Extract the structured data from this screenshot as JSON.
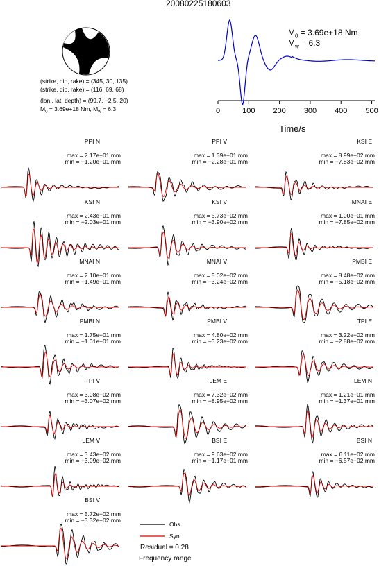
{
  "header": {
    "title": "20080225180603"
  },
  "mechanism": {
    "plane1": "(strike, dip, rake) = (345, 30, 135)",
    "plane2": "(strike, dip, rake) = (116, 69, 68)",
    "location": "(lon., lat, depth) = (99.7, −2.5, 20)",
    "moment_main": "M",
    "moment_sub": "0",
    "moment_value": " = 3.69e+18 Nm, M",
    "mw_sub": "w",
    "mw_value": " = 6.3"
  },
  "stf": {
    "m0_label": "M",
    "m0_sub": "0",
    "m0_value": " = 3.69e+18 Nm",
    "mw_label": "M",
    "mw_sub": "w",
    "mw_value": " = 6.3",
    "xlabel": "Time/s",
    "ticks": [
      "0",
      "100",
      "200",
      "300",
      "400",
      "500"
    ],
    "line_color": "#0000cc"
  },
  "legend": {
    "obs": "Obs.",
    "syn": "Syn.",
    "obs_color": "#000000",
    "syn_color": "#dd0000",
    "residual": "Residual = 0.28",
    "freq": "Frequency range"
  },
  "chart_data": {
    "type": "line",
    "stf_xlim": [
      0,
      510
    ],
    "stf_peak_time_s": 55,
    "stations": [
      {
        "name": "PPI N",
        "max": "max = 2.17e−01 mm",
        "min": "min = −1.20e−01 mm"
      },
      {
        "name": "PPI V",
        "max": "max = 1.39e−01 mm",
        "min": "min = −2.28e−01 mm"
      },
      {
        "name": "KSI E",
        "max": "max = 8.99e−02 mm",
        "min": "min = −7.83e−02 mm"
      },
      {
        "name": "KSI N",
        "max": "max = 2.43e−01 mm",
        "min": "min = −2.03e−01 mm"
      },
      {
        "name": "KSI V",
        "max": "max = 5.73e−02 mm",
        "min": "min = −3.90e−02 mm"
      },
      {
        "name": "MNAI E",
        "max": "max = 1.00e−01 mm",
        "min": "min = −7.85e−02 mm"
      },
      {
        "name": "MNAI N",
        "max": "max = 2.10e−01 mm",
        "min": "min = −1.49e−01 mm"
      },
      {
        "name": "MNAI V",
        "max": "max = 5.02e−02 mm",
        "min": "min = −3.24e−02 mm"
      },
      {
        "name": "PMBI E",
        "max": "max = 8.48e−02 mm",
        "min": "min = −5.18e−02 mm"
      },
      {
        "name": "PMBI N",
        "max": "max = 1.75e−01 mm",
        "min": "min = −1.01e−01 mm"
      },
      {
        "name": "PMBI V",
        "max": "max = 4.80e−02 mm",
        "min": "min = −3.23e−02 mm"
      },
      {
        "name": "TPI E",
        "max": "max = 3.22e−02 mm",
        "min": "min = −2.88e−02 mm"
      },
      {
        "name": "TPI V",
        "max": "max = 3.08e−02 mm",
        "min": "min = −3.07e−02 mm"
      },
      {
        "name": "LEM E",
        "max": "max = 7.32e−02 mm",
        "min": "min = −8.95e−02 mm"
      },
      {
        "name": "LEM N",
        "max": "max = 1.21e−01 mm",
        "min": "min = −1.37e−01 mm"
      },
      {
        "name": "LEM V",
        "max": "max = 3.43e−02 mm",
        "min": "min = −3.09e−02 mm"
      },
      {
        "name": "BSI E",
        "max": "max = 9.63e−02 mm",
        "min": "min = −1.17e−01 mm"
      },
      {
        "name": "BSI N",
        "max": "max = 6.11e−02 mm",
        "min": "min = −6.57e−02 mm"
      },
      {
        "name": "BSI V",
        "max": "max = 5.72e−02 mm",
        "min": "min = −3.32e−02 mm"
      }
    ]
  }
}
